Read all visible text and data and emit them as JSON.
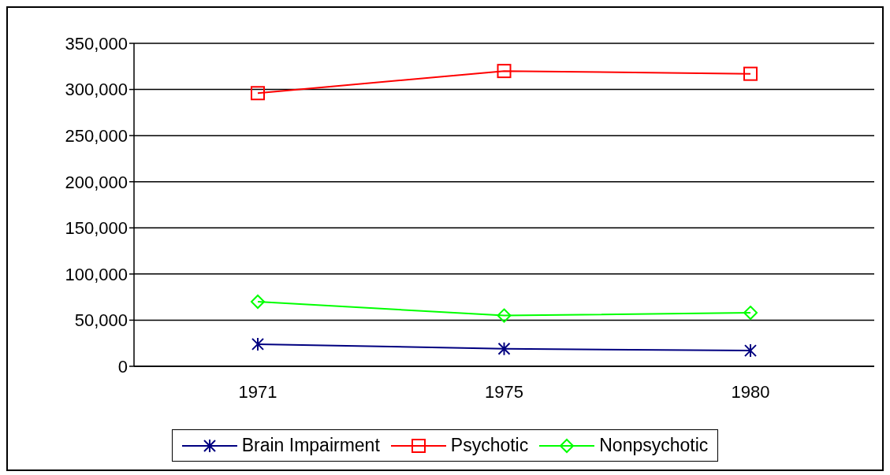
{
  "chart_data": {
    "type": "line",
    "categories": [
      "1971",
      "1975",
      "1980"
    ],
    "series": [
      {
        "name": "Brain Impairment",
        "color": "#000080",
        "marker": "cross",
        "values": [
          24000,
          19000,
          17000
        ]
      },
      {
        "name": "Psychotic",
        "color": "#ff0000",
        "marker": "square",
        "values": [
          296000,
          320000,
          317000
        ]
      },
      {
        "name": "Nonpsychotic",
        "color": "#00ff00",
        "marker": "diamond",
        "values": [
          70000,
          55000,
          58000
        ]
      }
    ],
    "ylim": [
      0,
      350000
    ],
    "yticks": [
      0,
      {
        "value": 50000,
        "label": "50,000"
      },
      {
        "value": 100000,
        "label": "100,000"
      },
      {
        "value": 150000,
        "label": "150,000"
      },
      {
        "value": 200000,
        "label": "200,000"
      },
      {
        "value": 250000,
        "label": "250,000"
      },
      {
        "value": 300000,
        "label": "300,000"
      },
      {
        "value": 350000,
        "label": "350,000"
      }
    ],
    "grid": "y",
    "legend": "bottom"
  }
}
